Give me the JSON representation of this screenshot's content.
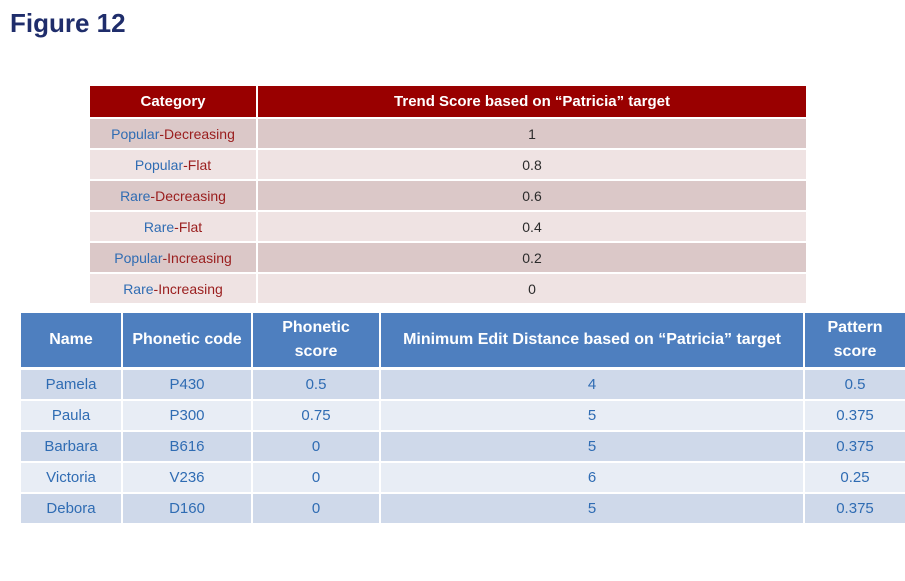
{
  "title": "Figure 12",
  "trend_table": {
    "headers": [
      "Category",
      "Trend Score based on “Patricia” target"
    ],
    "rows": [
      {
        "pop": "Popular",
        "sep": "-",
        "trend": "Decreasing",
        "score": "1"
      },
      {
        "pop": "Popular",
        "sep": "-",
        "trend": "Flat",
        "score": "0.8"
      },
      {
        "pop": "Rare",
        "sep": "-",
        "trend": "Decreasing",
        "score": "0.6"
      },
      {
        "pop": "Rare",
        "sep": "-",
        "trend": "Flat",
        "score": "0.4"
      },
      {
        "pop": "Popular",
        "sep": "-",
        "trend": "Increasing",
        "score": "0.2"
      },
      {
        "pop": "Rare",
        "sep": "-",
        "trend": "Increasing",
        "score": "0"
      }
    ]
  },
  "name_table": {
    "headers": [
      "Name",
      "Phonetic code",
      "Phonetic score",
      "Minimum Edit Distance based on “Patricia” target",
      "Pattern score"
    ],
    "rows": [
      [
        "Pamela",
        "P430",
        "0.5",
        "4",
        "0.5"
      ],
      [
        "Paula",
        "P300",
        "0.75",
        "5",
        "0.375"
      ],
      [
        "Barbara",
        "B616",
        "0",
        "5",
        "0.375"
      ],
      [
        "Victoria",
        "V236",
        "0",
        "6",
        "0.25"
      ],
      [
        "Debora",
        "D160",
        "0",
        "5",
        "0.375"
      ]
    ]
  },
  "colors": {
    "title": "#1f2d6b",
    "trend_header": "#990000",
    "name_header": "#4e7fbf",
    "popularity_text": "#2f6cb3",
    "trend_text": "#9a1d1d"
  }
}
